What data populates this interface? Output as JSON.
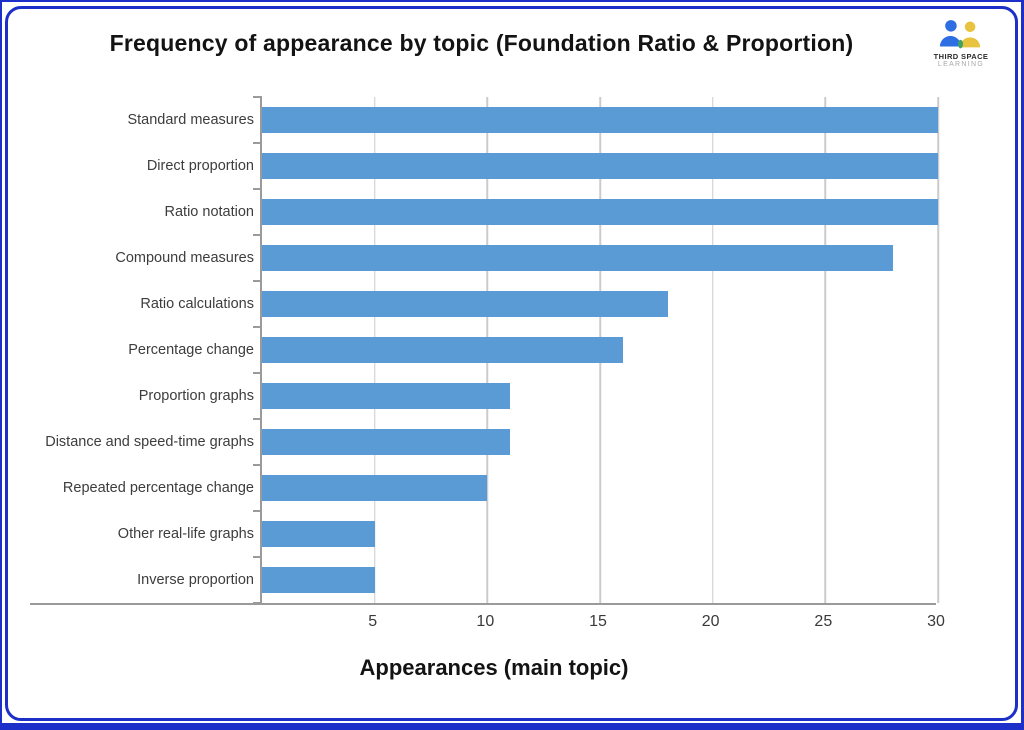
{
  "header": {
    "title": "Frequency of appearance by topic (Foundation Ratio & Proportion)",
    "logo": {
      "line1": "THIRD SPACE",
      "line2": "LEARNING"
    }
  },
  "chart_data": {
    "type": "bar",
    "orientation": "horizontal",
    "title": "Frequency of appearance by topic (Foundation Ratio & Proportion)",
    "categories": [
      "Standard measures",
      "Direct proportion",
      "Ratio notation",
      "Compound measures",
      "Ratio calculations",
      "Percentage change",
      "Proportion graphs",
      "Distance and speed-time graphs",
      "Repeated percentage change",
      "Other real-life graphs",
      "Inverse proportion"
    ],
    "values": [
      30,
      30,
      30,
      28,
      18,
      16,
      11,
      11,
      10,
      5,
      5
    ],
    "xlabel": "Appearances (main topic)",
    "ylabel": "",
    "xlim": [
      0,
      30
    ],
    "xticks": [
      5,
      10,
      15,
      20,
      25,
      30
    ],
    "grid": true,
    "legend": "none"
  },
  "colors": {
    "bar": "#5b9bd5",
    "frame_border": "#1c2fc9",
    "gridline": "#cbcbcb",
    "axis": "#9a9a9a",
    "logo_blue": "#2e6ee3",
    "logo_yellow": "#e8c33f",
    "logo_green": "#3fa463"
  }
}
